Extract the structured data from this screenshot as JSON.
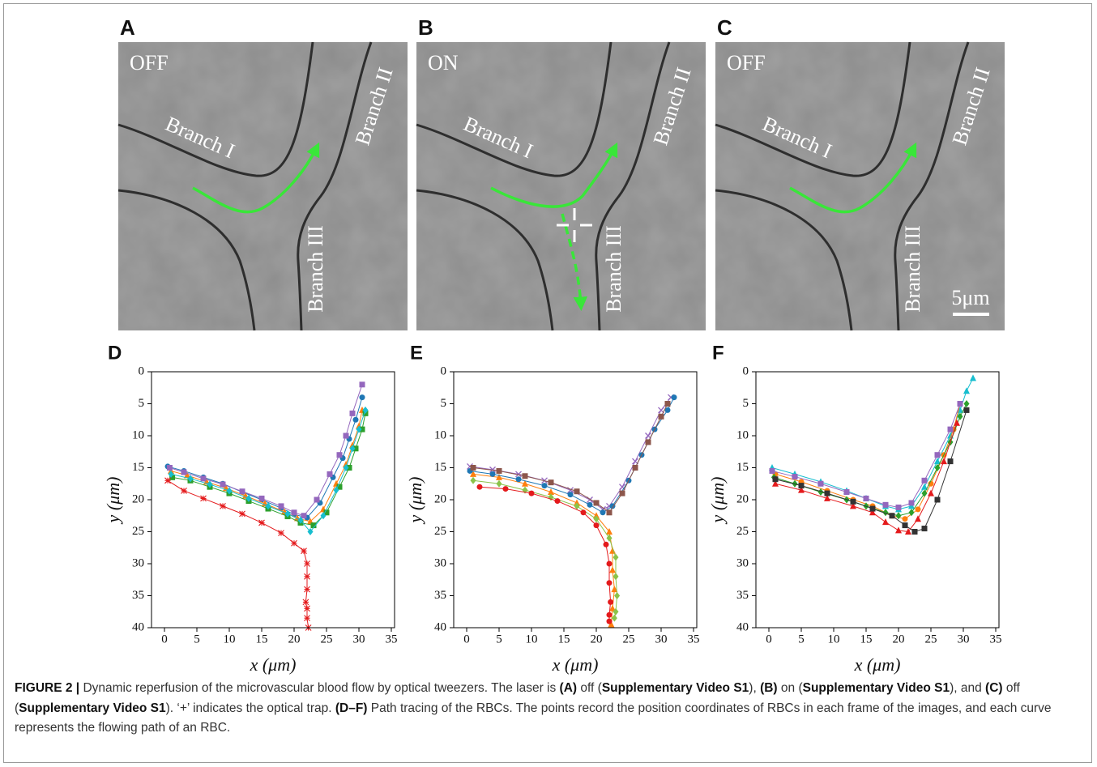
{
  "figure": {
    "panels": [
      {
        "letter": "A",
        "state": "OFF",
        "branches": [
          "Branch I",
          "Branch II",
          "Branch III"
        ]
      },
      {
        "letter": "B",
        "state": "ON",
        "branches": [
          "Branch I",
          "Branch II",
          "Branch III"
        ]
      },
      {
        "letter": "C",
        "state": "OFF",
        "branches": [
          "Branch I",
          "Branch II",
          "Branch III"
        ],
        "scale_bar": "5μm"
      }
    ]
  },
  "chart_data": [
    {
      "type": "line",
      "letter": "D",
      "x_label": "x (μm)",
      "y_label": "y (μm)",
      "xlim": [
        -2,
        35.5
      ],
      "ylim": [
        0,
        40
      ],
      "y_inverted": true,
      "xticks": [
        0,
        5,
        10,
        15,
        20,
        25,
        30,
        35
      ],
      "yticks": [
        0,
        5,
        10,
        15,
        20,
        25,
        30,
        35,
        40
      ],
      "series": [
        {
          "color": "#1f77b4",
          "marker": "circle",
          "x": [
            0.5,
            3,
            6,
            9,
            12,
            15,
            18,
            20,
            22,
            24,
            26,
            27.5,
            28.5,
            29.5,
            30.5
          ],
          "values": [
            14.8,
            15.5,
            16.5,
            17.5,
            18.8,
            20,
            21.3,
            22.3,
            22.8,
            20.5,
            16.5,
            13.5,
            10.5,
            7.5,
            4
          ]
        },
        {
          "color": "#ff7f0e",
          "marker": "triangle",
          "x": [
            1,
            3.5,
            6.5,
            9.5,
            12.5,
            15.5,
            18.5,
            20.5,
            22.5,
            24.5,
            26.5,
            28,
            29,
            30,
            30.5
          ],
          "values": [
            15.5,
            16.2,
            17.2,
            18.2,
            19.4,
            20.6,
            21.9,
            22.9,
            23.4,
            21.5,
            17.5,
            14.5,
            11.5,
            8.5,
            6
          ]
        },
        {
          "color": "#2ca02c",
          "marker": "square",
          "x": [
            1.2,
            4,
            7,
            10,
            13,
            16,
            19,
            21,
            23,
            25,
            27,
            28.5,
            29.5,
            30.5,
            31
          ],
          "values": [
            16.5,
            17,
            18,
            19,
            20.2,
            21.4,
            22.6,
            23.6,
            24,
            22,
            18,
            15,
            12,
            9,
            6.5
          ]
        },
        {
          "color": "#9467bd",
          "marker": "square",
          "x": [
            0.8,
            3,
            6,
            9,
            12,
            15,
            18,
            20,
            21.5,
            23.5,
            25.5,
            27,
            28,
            29,
            30.5
          ],
          "values": [
            15,
            15.7,
            16.7,
            17.6,
            18.7,
            19.8,
            21,
            22,
            22.5,
            20,
            16,
            13,
            10,
            6.5,
            2
          ]
        },
        {
          "color": "#17becf",
          "marker": "diamond",
          "x": [
            1,
            4,
            7,
            10,
            13,
            16,
            19,
            21,
            22.5,
            24.5,
            26.5,
            28,
            29,
            30,
            31
          ],
          "values": [
            16,
            16.7,
            17.6,
            18.6,
            19.8,
            21,
            22.2,
            23.2,
            25,
            22.5,
            18.5,
            15,
            12,
            9,
            6
          ]
        },
        {
          "color": "#e41a1c",
          "marker": "star",
          "x": [
            0.5,
            3,
            6,
            9,
            12,
            15,
            18,
            20,
            21.5,
            22,
            22,
            22,
            21.8,
            22,
            22,
            22.2
          ],
          "values": [
            17,
            18.6,
            19.8,
            21,
            22.2,
            23.6,
            25.2,
            26.8,
            28,
            30,
            32,
            34,
            36,
            37,
            38.5,
            40
          ]
        }
      ]
    },
    {
      "type": "line",
      "letter": "E",
      "x_label": "x (μm)",
      "y_label": "y (μm)",
      "xlim": [
        -2,
        35.5
      ],
      "ylim": [
        0,
        40
      ],
      "y_inverted": true,
      "xticks": [
        0,
        5,
        10,
        15,
        20,
        25,
        30,
        35
      ],
      "yticks": [
        0,
        5,
        10,
        15,
        20,
        25,
        30,
        35,
        40
      ],
      "series": [
        {
          "color": "#9467bd",
          "marker": "x",
          "x": [
            0.5,
            4,
            8,
            12,
            16,
            19,
            21,
            22,
            24,
            26,
            28,
            30,
            31.5
          ],
          "values": [
            14.8,
            15.3,
            16,
            17,
            18.5,
            20,
            21.5,
            21,
            18,
            14,
            10,
            6,
            4
          ]
        },
        {
          "color": "#ff7f0e",
          "marker": "triangle",
          "x": [
            1,
            5,
            9,
            13,
            17,
            20,
            22,
            22.5,
            22.5,
            22.8,
            22.5,
            22.3
          ],
          "values": [
            16,
            16.5,
            17.5,
            18.8,
            20.5,
            22.5,
            25,
            28,
            31,
            34,
            37,
            39.5
          ]
        },
        {
          "color": "#8bc34a",
          "marker": "diamond",
          "x": [
            1,
            5,
            9,
            13,
            17,
            20,
            22,
            23,
            23,
            23.2,
            23,
            22.8
          ],
          "values": [
            17,
            17.5,
            18.5,
            19.6,
            21,
            23,
            26,
            29,
            32,
            35,
            37.5,
            38.5
          ]
        },
        {
          "color": "#1f77b4",
          "marker": "circle",
          "x": [
            0.5,
            4,
            8,
            12,
            16,
            19,
            21,
            22.5,
            25,
            27,
            29,
            31,
            32
          ],
          "values": [
            15.5,
            16,
            16.8,
            17.8,
            19.2,
            20.8,
            22,
            21,
            17,
            13,
            9,
            6,
            4
          ]
        },
        {
          "color": "#e41a1c",
          "marker": "circle",
          "x": [
            2,
            6,
            10,
            14,
            18,
            20,
            21.5,
            22,
            22,
            22.2,
            22,
            22
          ],
          "values": [
            18,
            18.3,
            19,
            20.2,
            22,
            24,
            27,
            30,
            33,
            36,
            38,
            39
          ]
        },
        {
          "color": "#8c564b",
          "marker": "square",
          "x": [
            1,
            5,
            9,
            13,
            17,
            20,
            22,
            24,
            26,
            28,
            30,
            31
          ],
          "values": [
            15,
            15.5,
            16.3,
            17.3,
            18.7,
            20.5,
            22,
            19,
            15,
            11,
            7,
            5
          ]
        }
      ]
    },
    {
      "type": "line",
      "letter": "F",
      "x_label": "x (μm)",
      "y_label": "y (μm)",
      "xlim": [
        -2,
        35.5
      ],
      "ylim": [
        0,
        40
      ],
      "y_inverted": true,
      "xticks": [
        0,
        5,
        10,
        15,
        20,
        25,
        30,
        35
      ],
      "yticks": [
        0,
        5,
        10,
        15,
        20,
        25,
        30,
        35,
        40
      ],
      "series": [
        {
          "color": "#17becf",
          "marker": "triangle",
          "x": [
            0.5,
            4,
            8,
            12,
            15,
            18,
            20,
            22,
            24,
            26,
            28,
            29.5,
            30.5,
            31.5
          ],
          "values": [
            15,
            16,
            17.2,
            18.6,
            19.8,
            21,
            21.5,
            21,
            18,
            14,
            10,
            6,
            3,
            1
          ]
        },
        {
          "color": "#ff7f0e",
          "marker": "circle",
          "x": [
            1,
            5,
            9,
            13,
            16,
            19,
            21,
            23,
            25,
            27,
            28.5,
            29.5
          ],
          "values": [
            16,
            17.2,
            18.6,
            20,
            21,
            22.5,
            23,
            21.5,
            17.5,
            13,
            9,
            5
          ]
        },
        {
          "color": "#2ca02c",
          "marker": "diamond",
          "x": [
            0.8,
            4,
            8,
            12,
            15,
            18,
            20,
            22,
            24,
            26,
            28,
            29.5,
            30.5
          ],
          "values": [
            16.5,
            17.5,
            18.8,
            20,
            21,
            22,
            22.5,
            22,
            19,
            15,
            11,
            7,
            5
          ]
        },
        {
          "color": "#e41a1c",
          "marker": "triangle",
          "x": [
            1,
            5,
            9,
            13,
            16,
            18,
            20,
            21.5,
            23,
            25,
            27,
            29
          ],
          "values": [
            17.5,
            18.5,
            19.8,
            21,
            22,
            23.5,
            24.8,
            25,
            23,
            19,
            14,
            8
          ]
        },
        {
          "color": "#333333",
          "marker": "square",
          "x": [
            1,
            5,
            9,
            13,
            16,
            19,
            21,
            22.5,
            24,
            26,
            28,
            30.5
          ],
          "values": [
            16.8,
            17.8,
            19,
            20.3,
            21.4,
            22.5,
            24,
            25,
            24.5,
            20,
            14,
            6
          ]
        },
        {
          "color": "#9467bd",
          "marker": "square",
          "x": [
            0.5,
            4,
            8,
            12,
            15,
            18,
            20,
            22,
            24,
            26,
            28,
            29.5
          ],
          "values": [
            15.5,
            16.4,
            17.5,
            18.8,
            19.8,
            20.8,
            21.2,
            20.5,
            17,
            13,
            9,
            5
          ]
        }
      ]
    }
  ],
  "caption": [
    {
      "text": "FIGURE 2 | ",
      "bold": true
    },
    {
      "text": "Dynamic reperfusion of the microvascular blood flow by optical tweezers. The laser is ",
      "bold": false
    },
    {
      "text": "(A)",
      "bold": true
    },
    {
      "text": " off (",
      "bold": false
    },
    {
      "text": "Supplementary Video S1",
      "bold": true
    },
    {
      "text": "), ",
      "bold": false
    },
    {
      "text": "(B)",
      "bold": true
    },
    {
      "text": " on (",
      "bold": false
    },
    {
      "text": "Supplementary Video S1",
      "bold": true
    },
    {
      "text": "), and ",
      "bold": false
    },
    {
      "text": "(C)",
      "bold": true
    },
    {
      "text": " off (",
      "bold": false
    },
    {
      "text": "Supplementary Video S1",
      "bold": true
    },
    {
      "text": "). ‘+’ indicates the optical trap. ",
      "bold": false
    },
    {
      "text": "(D–F)",
      "bold": true
    },
    {
      "text": " Path tracing of the RBCs. The points record the position coordinates of RBCs in each frame of the images, and each curve represents the flowing path of an RBC.",
      "bold": false
    }
  ]
}
